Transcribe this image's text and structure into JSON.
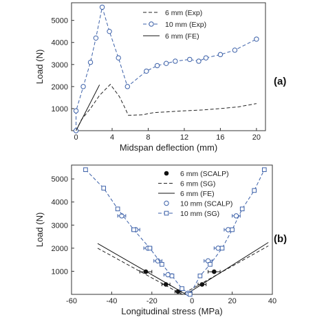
{
  "chart_data": [
    {
      "type": "line",
      "panel_label": "(a)",
      "xlabel": "Midspan deflection (mm)",
      "ylabel": "Load (N)",
      "xlim": [
        -0.5,
        21
      ],
      "ylim": [
        0,
        5800
      ],
      "xticks": [
        0,
        4,
        8,
        12,
        16,
        20
      ],
      "yticks": [
        1000,
        2000,
        3000,
        4000,
        5000
      ],
      "legend_position": "top-right",
      "series": [
        {
          "name": "6 mm (Exp)",
          "style": "dashed",
          "color": "#222222",
          "marker": "none",
          "points": [
            [
              0,
              0
            ],
            [
              0.6,
              500
            ],
            [
              1.6,
              1000
            ],
            [
              2.6,
              1600
            ],
            [
              3.8,
              2100
            ],
            [
              4.8,
              1550
            ],
            [
              5.4,
              1050
            ],
            [
              5.8,
              700
            ],
            [
              7.4,
              720
            ],
            [
              8.6,
              820
            ],
            [
              10,
              850
            ],
            [
              12,
              900
            ],
            [
              14,
              940
            ],
            [
              16,
              1000
            ],
            [
              18,
              1080
            ],
            [
              20,
              1230
            ]
          ]
        },
        {
          "name": "10 mm (Exp)",
          "style": "dashed",
          "color": "#3a5fa8",
          "marker": "open-circle",
          "points": [
            [
              0,
              0
            ],
            [
              0,
              900
            ],
            [
              0.8,
              2000
            ],
            [
              1.6,
              3100
            ],
            [
              2.2,
              4200
            ],
            [
              2.9,
              5600
            ],
            [
              3.7,
              4500
            ],
            [
              4.7,
              3300
            ],
            [
              5.7,
              2000
            ],
            [
              7.8,
              2700
            ],
            [
              9,
              2950
            ],
            [
              10,
              3050
            ],
            [
              11,
              3150
            ],
            [
              12.6,
              3230
            ],
            [
              13.6,
              3150
            ],
            [
              14.4,
              3300
            ],
            [
              16,
              3450
            ],
            [
              17.6,
              3650
            ],
            [
              20,
              4150
            ]
          ]
        },
        {
          "name": "6 mm (FE)",
          "style": "solid",
          "color": "#111111",
          "marker": "none",
          "points": [
            [
              0,
              0
            ],
            [
              2.6,
              2080
            ]
          ]
        }
      ]
    },
    {
      "type": "scatter",
      "panel_label": "(b)",
      "xlabel": "Longitudinal stress (MPa)",
      "ylabel": "Load (N)",
      "xlim": [
        -60,
        40
      ],
      "ylim": [
        0,
        5600
      ],
      "xticks": [
        -60,
        -40,
        -20,
        0,
        20,
        40
      ],
      "yticks": [
        1000,
        2000,
        3000,
        4000,
        5000
      ],
      "legend_position": "top-center",
      "series": [
        {
          "name": "6 mm (SCALP)",
          "style": "markers",
          "color": "#111111",
          "marker": "filled-circle",
          "points": [
            [
              -23,
              980
            ],
            [
              -13,
              430
            ],
            [
              -7,
              120
            ],
            [
              5,
              430
            ],
            [
              11,
              980
            ]
          ],
          "xerr": [
            3,
            2,
            1.5,
            2,
            3
          ]
        },
        {
          "name": "6 mm (SG)",
          "style": "dashed",
          "color": "#222222",
          "marker": "none",
          "points": [
            [
              -47,
              2000
            ],
            [
              -5,
              0
            ],
            [
              38,
              2100
            ]
          ]
        },
        {
          "name": "6 mm (FE)",
          "style": "solid",
          "color": "#111111",
          "marker": "none",
          "points": [
            [
              -47,
              2200
            ],
            [
              -3,
              0
            ],
            [
              38,
              2250
            ]
          ]
        },
        {
          "name": "10 mm (SCALP)",
          "style": "markers",
          "color": "#3a5fa8",
          "marker": "open-circle",
          "points": [
            [
              -35,
              3400
            ],
            [
              -28,
              2800
            ],
            [
              -22,
              2000
            ],
            [
              -17,
              1450
            ],
            [
              -12,
              850
            ],
            [
              -2,
              50
            ],
            [
              8,
              1450
            ],
            [
              13,
              2000
            ],
            [
              18,
              2800
            ],
            [
              22,
              3400
            ]
          ],
          "xerr": [
            2,
            2,
            2,
            2,
            2,
            1,
            2,
            2,
            2,
            2
          ]
        },
        {
          "name": "10 mm (SG)",
          "style": "dashed-marker",
          "color": "#3a5fa8",
          "marker": "open-square",
          "points": [
            [
              -53,
              5400
            ],
            [
              -44,
              4600
            ],
            [
              -37,
              3700
            ],
            [
              -29,
              2800
            ],
            [
              -21,
              2000
            ],
            [
              -15,
              1300
            ],
            [
              -10,
              800
            ],
            [
              -5,
              250
            ],
            [
              -1,
              0
            ],
            [
              4,
              800
            ],
            [
              9,
              1300
            ],
            [
              15,
              2000
            ],
            [
              20,
              2800
            ],
            [
              25,
              3700
            ],
            [
              31,
              4500
            ],
            [
              36,
              5400
            ]
          ]
        }
      ]
    }
  ]
}
